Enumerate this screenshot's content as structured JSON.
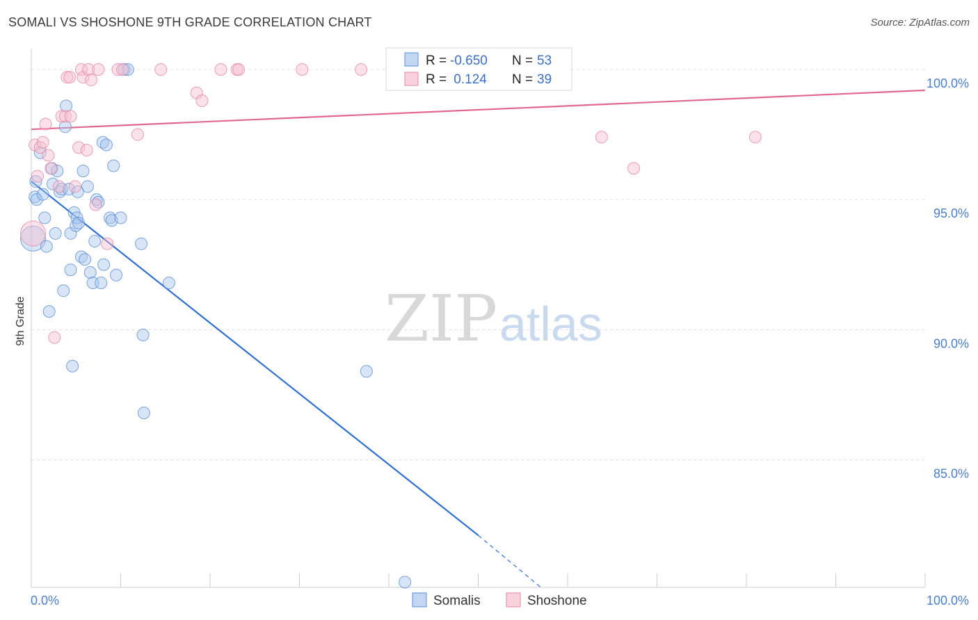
{
  "title": "SOMALI VS SHOSHONE 9TH GRADE CORRELATION CHART",
  "source": "Source: ZipAtlas.com",
  "watermark": {
    "zip": "ZIP",
    "atlas": "atlas"
  },
  "colors": {
    "somali_fill": "#a9c6ee",
    "somali_stroke": "#5b8fd6",
    "somali_line": "#2e6fd1",
    "shoshone_fill": "#f6bfd0",
    "shoshone_stroke": "#e487a6",
    "shoshone_line": "#e06890",
    "grid": "#e3e3e3",
    "tick_label": "#4a7fc8"
  },
  "legend": {
    "rows": [
      {
        "r_label": "R =",
        "r_value": "-0.650",
        "n_label": "N =",
        "n_value": "53"
      },
      {
        "r_label": "R =",
        "r_value": " 0.124",
        "n_label": "N =",
        "n_value": "39"
      }
    ]
  },
  "bottom_legend": [
    "Somalis",
    "Shoshone"
  ],
  "chart_data": {
    "type": "scatter",
    "ylabel": "9th Grade",
    "xlim": [
      0,
      100
    ],
    "ylim": [
      80.1,
      100.8
    ],
    "x_tick_labels": [
      {
        "value": 0,
        "label": "0.0%"
      },
      {
        "value": 100,
        "label": "100.0%"
      }
    ],
    "y_tick_labels": [
      {
        "value": 100,
        "label": "100.0%"
      },
      {
        "value": 95,
        "label": "95.0%"
      },
      {
        "value": 90,
        "label": "90.0%"
      },
      {
        "value": 85,
        "label": "85.0%"
      }
    ],
    "series": [
      {
        "name": "Somalis",
        "points": [
          [
            0.2,
            93.5
          ],
          [
            0.5,
            95.7
          ],
          [
            0.4,
            95.1
          ],
          [
            0.6,
            95.0
          ],
          [
            1.0,
            96.8
          ],
          [
            1.3,
            95.2
          ],
          [
            1.5,
            94.3
          ],
          [
            1.7,
            93.2
          ],
          [
            2.0,
            90.7
          ],
          [
            2.3,
            96.2
          ],
          [
            2.4,
            95.6
          ],
          [
            2.7,
            93.7
          ],
          [
            2.9,
            96.1
          ],
          [
            3.2,
            95.3
          ],
          [
            3.4,
            95.4
          ],
          [
            3.6,
            91.5
          ],
          [
            3.8,
            97.8
          ],
          [
            3.9,
            98.6
          ],
          [
            4.2,
            95.4
          ],
          [
            4.4,
            92.3
          ],
          [
            4.4,
            93.7
          ],
          [
            4.6,
            88.6
          ],
          [
            4.8,
            94.5
          ],
          [
            5.0,
            94.0
          ],
          [
            5.1,
            94.3
          ],
          [
            5.3,
            94.1
          ],
          [
            5.6,
            92.8
          ],
          [
            5.8,
            96.1
          ],
          [
            6.0,
            92.7
          ],
          [
            6.3,
            95.5
          ],
          [
            6.6,
            92.2
          ],
          [
            6.9,
            91.8
          ],
          [
            7.1,
            93.4
          ],
          [
            7.3,
            95.0
          ],
          [
            7.5,
            94.9
          ],
          [
            7.8,
            91.8
          ],
          [
            8.0,
            97.2
          ],
          [
            8.1,
            92.5
          ],
          [
            8.4,
            97.1
          ],
          [
            8.8,
            94.3
          ],
          [
            9.0,
            94.2
          ],
          [
            9.2,
            96.3
          ],
          [
            9.5,
            92.1
          ],
          [
            10.0,
            94.3
          ],
          [
            10.4,
            100.0
          ],
          [
            10.8,
            100.0
          ],
          [
            12.3,
            93.3
          ],
          [
            12.5,
            89.8
          ],
          [
            12.6,
            86.8
          ],
          [
            15.4,
            91.8
          ],
          [
            37.5,
            88.4
          ],
          [
            41.8,
            80.3
          ],
          [
            5.2,
            95.3
          ]
        ]
      },
      {
        "name": "Shoshone",
        "points": [
          [
            0.2,
            93.7
          ],
          [
            0.4,
            97.1
          ],
          [
            0.7,
            95.9
          ],
          [
            1.0,
            97.0
          ],
          [
            1.3,
            97.2
          ],
          [
            1.6,
            97.9
          ],
          [
            1.9,
            96.7
          ],
          [
            2.2,
            96.2
          ],
          [
            2.6,
            89.7
          ],
          [
            3.1,
            95.5
          ],
          [
            3.4,
            98.2
          ],
          [
            3.8,
            98.2
          ],
          [
            4.0,
            99.7
          ],
          [
            4.3,
            99.7
          ],
          [
            4.4,
            98.2
          ],
          [
            4.9,
            95.5
          ],
          [
            5.3,
            97.0
          ],
          [
            5.6,
            100.0
          ],
          [
            5.8,
            99.7
          ],
          [
            6.2,
            96.9
          ],
          [
            6.4,
            100.0
          ],
          [
            6.7,
            99.6
          ],
          [
            7.2,
            94.8
          ],
          [
            7.5,
            100.0
          ],
          [
            8.5,
            93.3
          ],
          [
            9.7,
            100.0
          ],
          [
            10.2,
            100.0
          ],
          [
            11.9,
            97.5
          ],
          [
            14.5,
            100.0
          ],
          [
            18.5,
            99.1
          ],
          [
            19.1,
            98.8
          ],
          [
            21.2,
            100.0
          ],
          [
            23.0,
            100.0
          ],
          [
            23.2,
            100.0
          ],
          [
            30.3,
            100.0
          ],
          [
            36.9,
            100.0
          ],
          [
            63.8,
            97.4
          ],
          [
            67.4,
            96.2
          ],
          [
            81.0,
            97.4
          ]
        ]
      }
    ],
    "trendlines": [
      {
        "series": "Somalis",
        "from": [
          0,
          95.7
        ],
        "to": [
          50,
          82.1
        ],
        "dashed_to": [
          57,
          80.1
        ]
      },
      {
        "series": "Shoshone",
        "from": [
          0,
          97.7
        ],
        "to": [
          100,
          99.2
        ]
      }
    ]
  }
}
